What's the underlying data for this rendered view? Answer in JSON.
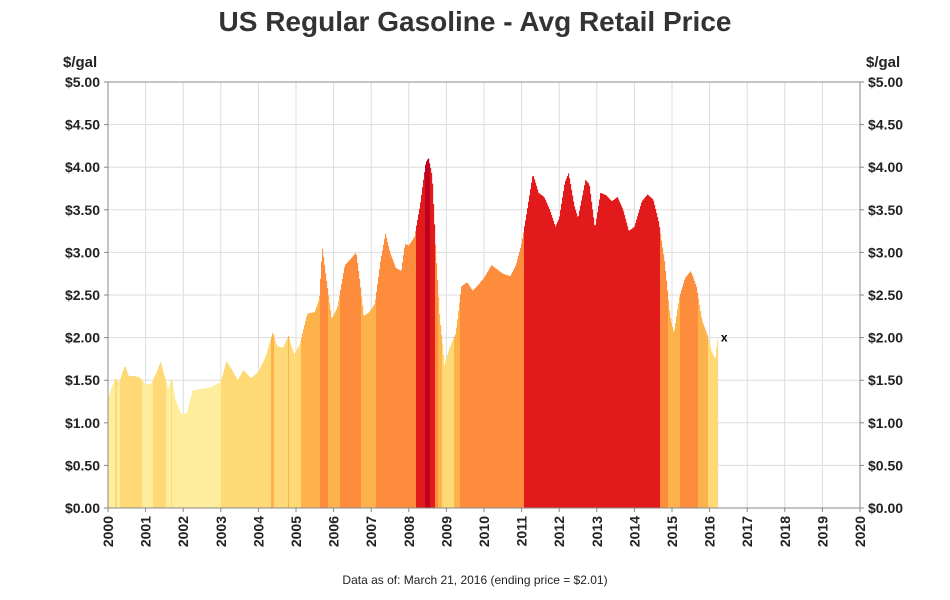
{
  "title": "US Regular Gasoline - Avg Retail Price",
  "unit_left": "$/gal",
  "unit_right": "$/gal",
  "footnote": "Data as of: March 21, 2016  (ending price = $2.01)",
  "marker_symbol": "x",
  "colors": {
    "band_1": "#FFED9E",
    "band_2": "#FED976",
    "band_3": "#FEB24C",
    "band_4": "#FD8D3C",
    "band_5": "#E31A1C",
    "band_6": "#C00020",
    "grid": "#DDDDDD",
    "axis": "#888888"
  },
  "chart_data": {
    "type": "area",
    "title": "US Regular Gasoline - Avg Retail Price",
    "ylabel": "$/gal",
    "xlim": [
      2000,
      2020
    ],
    "ylim": [
      0,
      5
    ],
    "x_ticks": [
      "2000",
      "2001",
      "2002",
      "2003",
      "2004",
      "2005",
      "2006",
      "2007",
      "2008",
      "2009",
      "2010",
      "2011",
      "2012",
      "2013",
      "2014",
      "2015",
      "2016",
      "2017",
      "2018",
      "2019",
      "2020"
    ],
    "y_ticks": [
      "$0.00",
      "$0.50",
      "$1.00",
      "$1.50",
      "$2.00",
      "$2.50",
      "$3.00",
      "$3.50",
      "$4.00",
      "$4.50",
      "$5.00"
    ],
    "grid": true,
    "color_bands": [
      {
        "max_price": 1.5,
        "color": "#FFED9E"
      },
      {
        "max_price": 2.0,
        "color": "#FED976"
      },
      {
        "max_price": 2.5,
        "color": "#FEB24C"
      },
      {
        "max_price": 3.25,
        "color": "#FD8D3C"
      },
      {
        "max_price": 4.0,
        "color": "#E31A1C"
      },
      {
        "max_price": 9.0,
        "color": "#C00020"
      }
    ],
    "points": [
      [
        2000.0,
        1.29
      ],
      [
        2000.1,
        1.42
      ],
      [
        2000.2,
        1.52
      ],
      [
        2000.3,
        1.48
      ],
      [
        2000.45,
        1.67
      ],
      [
        2000.55,
        1.55
      ],
      [
        2000.7,
        1.55
      ],
      [
        2000.85,
        1.53
      ],
      [
        2001.0,
        1.45
      ],
      [
        2001.15,
        1.46
      ],
      [
        2001.3,
        1.6
      ],
      [
        2001.4,
        1.72
      ],
      [
        2001.5,
        1.55
      ],
      [
        2001.6,
        1.4
      ],
      [
        2001.7,
        1.52
      ],
      [
        2001.8,
        1.26
      ],
      [
        2001.95,
        1.1
      ],
      [
        2002.1,
        1.12
      ],
      [
        2002.25,
        1.38
      ],
      [
        2002.5,
        1.4
      ],
      [
        2002.75,
        1.42
      ],
      [
        2003.0,
        1.48
      ],
      [
        2003.15,
        1.72
      ],
      [
        2003.3,
        1.62
      ],
      [
        2003.45,
        1.5
      ],
      [
        2003.6,
        1.62
      ],
      [
        2003.8,
        1.52
      ],
      [
        2004.0,
        1.6
      ],
      [
        2004.2,
        1.78
      ],
      [
        2004.38,
        2.06
      ],
      [
        2004.5,
        1.9
      ],
      [
        2004.65,
        1.88
      ],
      [
        2004.8,
        2.02
      ],
      [
        2004.95,
        1.8
      ],
      [
        2005.1,
        1.92
      ],
      [
        2005.3,
        2.28
      ],
      [
        2005.5,
        2.3
      ],
      [
        2005.62,
        2.45
      ],
      [
        2005.7,
        3.06
      ],
      [
        2005.8,
        2.7
      ],
      [
        2005.95,
        2.22
      ],
      [
        2006.1,
        2.35
      ],
      [
        2006.3,
        2.85
      ],
      [
        2006.45,
        2.92
      ],
      [
        2006.6,
        3.0
      ],
      [
        2006.7,
        2.65
      ],
      [
        2006.8,
        2.25
      ],
      [
        2006.95,
        2.3
      ],
      [
        2007.1,
        2.4
      ],
      [
        2007.25,
        2.9
      ],
      [
        2007.38,
        3.22
      ],
      [
        2007.5,
        3.0
      ],
      [
        2007.65,
        2.82
      ],
      [
        2007.8,
        2.78
      ],
      [
        2007.9,
        3.1
      ],
      [
        2008.0,
        3.08
      ],
      [
        2008.15,
        3.18
      ],
      [
        2008.3,
        3.55
      ],
      [
        2008.45,
        4.05
      ],
      [
        2008.52,
        4.11
      ],
      [
        2008.62,
        3.9
      ],
      [
        2008.72,
        3.0
      ],
      [
        2008.82,
        2.25
      ],
      [
        2008.95,
        1.68
      ],
      [
        2009.1,
        1.9
      ],
      [
        2009.25,
        2.05
      ],
      [
        2009.4,
        2.6
      ],
      [
        2009.55,
        2.65
      ],
      [
        2009.7,
        2.55
      ],
      [
        2009.85,
        2.62
      ],
      [
        2010.0,
        2.7
      ],
      [
        2010.2,
        2.85
      ],
      [
        2010.35,
        2.8
      ],
      [
        2010.5,
        2.75
      ],
      [
        2010.7,
        2.72
      ],
      [
        2010.85,
        2.85
      ],
      [
        2011.0,
        3.1
      ],
      [
        2011.15,
        3.5
      ],
      [
        2011.3,
        3.92
      ],
      [
        2011.45,
        3.7
      ],
      [
        2011.6,
        3.65
      ],
      [
        2011.75,
        3.5
      ],
      [
        2011.9,
        3.3
      ],
      [
        2012.0,
        3.4
      ],
      [
        2012.15,
        3.82
      ],
      [
        2012.25,
        3.93
      ],
      [
        2012.4,
        3.55
      ],
      [
        2012.5,
        3.4
      ],
      [
        2012.7,
        3.85
      ],
      [
        2012.8,
        3.8
      ],
      [
        2012.95,
        3.28
      ],
      [
        2013.1,
        3.7
      ],
      [
        2013.25,
        3.67
      ],
      [
        2013.4,
        3.6
      ],
      [
        2013.55,
        3.65
      ],
      [
        2013.7,
        3.5
      ],
      [
        2013.85,
        3.25
      ],
      [
        2014.0,
        3.3
      ],
      [
        2014.2,
        3.6
      ],
      [
        2014.35,
        3.68
      ],
      [
        2014.5,
        3.62
      ],
      [
        2014.65,
        3.35
      ],
      [
        2014.8,
        2.9
      ],
      [
        2014.95,
        2.25
      ],
      [
        2015.05,
        2.05
      ],
      [
        2015.2,
        2.48
      ],
      [
        2015.35,
        2.7
      ],
      [
        2015.5,
        2.78
      ],
      [
        2015.65,
        2.6
      ],
      [
        2015.8,
        2.2
      ],
      [
        2015.95,
        2.02
      ],
      [
        2016.05,
        1.84
      ],
      [
        2016.15,
        1.75
      ],
      [
        2016.22,
        2.01
      ]
    ],
    "last_point": {
      "x": 2016.22,
      "y": 2.01,
      "label": "x"
    }
  }
}
